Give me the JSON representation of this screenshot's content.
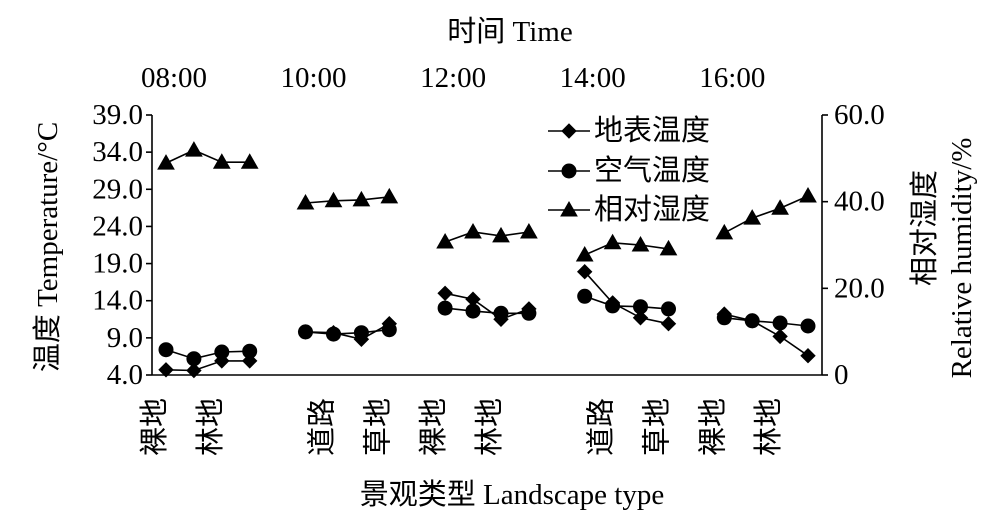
{
  "chart_data": {
    "type": "line",
    "top_axis": {
      "label": "时间 Time",
      "tick_labels": [
        "08:00",
        "10:00",
        "12:00",
        "14:00",
        "16:00"
      ]
    },
    "xlabel": "景观类型 Landscape type",
    "x_tick_labels": [
      "裸地",
      "",
      "林地",
      "",
      "",
      "",
      "道路",
      "",
      "草地",
      "",
      "裸地",
      "",
      "林地",
      "",
      "",
      "",
      "道路",
      "",
      "草地",
      "",
      "裸地",
      "",
      "林地",
      ""
    ],
    "ylabel": "温度 Temperature/°C",
    "ylim": [
      4.0,
      39.0
    ],
    "y_tick_labels": [
      "4.0",
      "9.0",
      "14.0",
      "19.0",
      "24.0",
      "29.0",
      "34.0",
      "39.0"
    ],
    "ylabel_right": [
      "相对湿度",
      "Relative humidity/%"
    ],
    "ylim_right": [
      0,
      60
    ],
    "y_tick_labels_right": [
      "0",
      "20.0",
      "40.0",
      "60.0"
    ],
    "grid": false,
    "legend": "top-right",
    "series": [
      {
        "name": "地表温度",
        "axis": "left",
        "marker": "diamond",
        "color": "#000000",
        "values": [
          4.7,
          4.6,
          5.9,
          5.9,
          null,
          9.8,
          9.7,
          8.8,
          10.9,
          null,
          15.0,
          14.2,
          11.5,
          12.9,
          null,
          17.9,
          13.7,
          11.7,
          10.9,
          null,
          12.2,
          11.3,
          9.2,
          6.6
        ]
      },
      {
        "name": "空气温度",
        "axis": "left",
        "marker": "circle",
        "color": "#000000",
        "values": [
          7.4,
          6.2,
          7.1,
          7.2,
          null,
          9.8,
          9.5,
          9.7,
          10.1,
          null,
          13.0,
          12.6,
          12.3,
          12.3,
          null,
          14.6,
          13.3,
          13.2,
          12.9,
          null,
          11.7,
          11.3,
          11.0,
          10.6
        ]
      },
      {
        "name": "相对湿度",
        "axis": "right",
        "marker": "triangle",
        "color": "#000000",
        "values": [
          48.9,
          51.9,
          49.1,
          49.1,
          null,
          39.7,
          40.2,
          40.4,
          41.1,
          null,
          30.7,
          33.0,
          32.1,
          33.0,
          null,
          27.7,
          30.5,
          30.0,
          29.1,
          null,
          32.8,
          36.2,
          38.5,
          41.3
        ]
      }
    ]
  }
}
